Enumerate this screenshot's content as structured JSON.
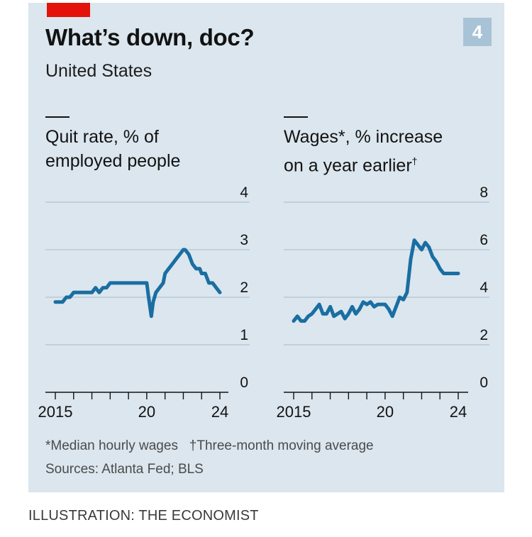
{
  "header": {
    "title": "What’s down, doc?",
    "subtitle": "United States",
    "chart_number": "4"
  },
  "footer": {
    "footnote_1": "*Median hourly wages",
    "footnote_2": "†Three-month moving average",
    "sources": "Sources: Atlanta Fed; BLS",
    "credit": "ILLUSTRATION: THE ECONOMIST"
  },
  "colors": {
    "line": "#1a6ea1",
    "background": "#dbe6ee",
    "accent": "#e3120b"
  },
  "chart_data": [
    {
      "type": "line",
      "label_line1": "Quit rate, % of",
      "label_line2": "employed people",
      "ylim": [
        0,
        4
      ],
      "yticks": [
        "0",
        "1",
        "2",
        "3",
        "4"
      ],
      "xlim": [
        2014.6,
        2024.4
      ],
      "xtick_labels": [
        {
          "x": 2015,
          "label": "2015"
        },
        {
          "x": 2020,
          "label": "20"
        },
        {
          "x": 2024,
          "label": "24"
        }
      ],
      "grid": true,
      "series": [
        {
          "x": [
            2015.0,
            2015.2,
            2015.4,
            2015.6,
            2015.8,
            2016.0,
            2016.2,
            2016.4,
            2016.6,
            2016.8,
            2017.0,
            2017.2,
            2017.4,
            2017.6,
            2017.8,
            2018.0,
            2018.2,
            2018.4,
            2018.6,
            2018.8,
            2019.0,
            2019.2,
            2019.4,
            2019.6,
            2019.8,
            2020.0,
            2020.1,
            2020.25,
            2020.35,
            2020.5,
            2020.7,
            2020.9,
            2021.0,
            2021.2,
            2021.4,
            2021.6,
            2021.8,
            2022.0,
            2022.1,
            2022.3,
            2022.5,
            2022.7,
            2022.9,
            2023.0,
            2023.2,
            2023.4,
            2023.6,
            2023.8,
            2024.0
          ],
          "values": [
            1.9,
            1.9,
            1.9,
            2.0,
            2.0,
            2.1,
            2.1,
            2.1,
            2.1,
            2.1,
            2.1,
            2.2,
            2.1,
            2.2,
            2.2,
            2.3,
            2.3,
            2.3,
            2.3,
            2.3,
            2.3,
            2.3,
            2.3,
            2.3,
            2.3,
            2.3,
            2.0,
            1.6,
            1.9,
            2.1,
            2.2,
            2.3,
            2.5,
            2.6,
            2.7,
            2.8,
            2.9,
            3.0,
            3.0,
            2.9,
            2.7,
            2.6,
            2.6,
            2.5,
            2.5,
            2.3,
            2.3,
            2.2,
            2.1
          ]
        }
      ]
    },
    {
      "type": "line",
      "label_line1": "Wages*, % increase",
      "label_line2": "on a year earlier",
      "label_mark": "†",
      "ylim": [
        0,
        8
      ],
      "yticks": [
        "0",
        "2",
        "4",
        "6",
        "8"
      ],
      "xlim": [
        2014.6,
        2024.4
      ],
      "xtick_labels": [
        {
          "x": 2015,
          "label": "2015"
        },
        {
          "x": 2020,
          "label": "20"
        },
        {
          "x": 2024,
          "label": "24"
        }
      ],
      "grid": true,
      "series": [
        {
          "x": [
            2015.0,
            2015.2,
            2015.4,
            2015.6,
            2015.8,
            2016.0,
            2016.2,
            2016.4,
            2016.6,
            2016.8,
            2017.0,
            2017.2,
            2017.4,
            2017.6,
            2017.8,
            2018.0,
            2018.2,
            2018.4,
            2018.6,
            2018.8,
            2019.0,
            2019.2,
            2019.4,
            2019.6,
            2019.8,
            2020.0,
            2020.2,
            2020.4,
            2020.6,
            2020.8,
            2021.0,
            2021.2,
            2021.4,
            2021.6,
            2021.8,
            2022.0,
            2022.2,
            2022.4,
            2022.6,
            2022.8,
            2023.0,
            2023.2,
            2023.4,
            2023.6,
            2023.8,
            2024.0
          ],
          "values": [
            3.0,
            3.2,
            3.0,
            3.0,
            3.2,
            3.3,
            3.5,
            3.7,
            3.3,
            3.3,
            3.6,
            3.2,
            3.3,
            3.4,
            3.1,
            3.3,
            3.6,
            3.3,
            3.5,
            3.8,
            3.7,
            3.8,
            3.6,
            3.7,
            3.7,
            3.7,
            3.5,
            3.2,
            3.6,
            4.0,
            3.9,
            4.2,
            5.6,
            6.4,
            6.2,
            6.0,
            6.3,
            6.1,
            5.7,
            5.5,
            5.2,
            5.0,
            5.0,
            5.0,
            5.0,
            5.0
          ]
        }
      ]
    }
  ]
}
